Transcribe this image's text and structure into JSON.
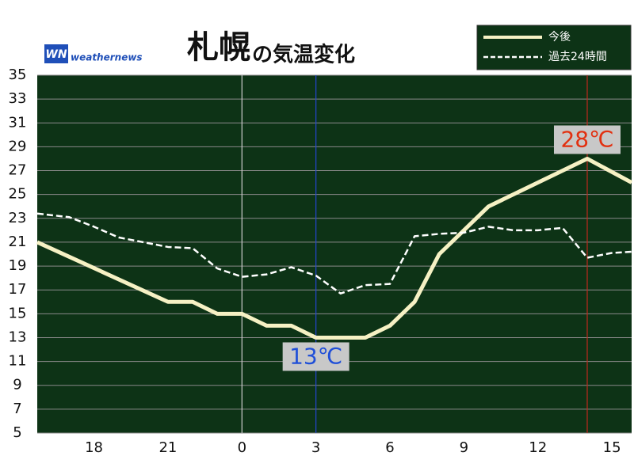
{
  "chart_data": {
    "type": "line",
    "title": "札幌",
    "subtitle": "の気温変化",
    "logo": {
      "mark": "WN",
      "text": "weathernews"
    },
    "xlim": [
      15.7,
      39.8
    ],
    "xticks": [
      {
        "value": 18,
        "label": "18"
      },
      {
        "value": 21,
        "label": "21"
      },
      {
        "value": 24,
        "label": "0"
      },
      {
        "value": 27,
        "label": "3"
      },
      {
        "value": 30,
        "label": "6"
      },
      {
        "value": 33,
        "label": "9"
      },
      {
        "value": 36,
        "label": "12"
      },
      {
        "value": 39,
        "label": "15"
      }
    ],
    "ylim": [
      5,
      35
    ],
    "yticks": [
      5,
      7,
      9,
      11,
      13,
      15,
      17,
      19,
      21,
      23,
      25,
      27,
      29,
      31,
      33,
      35
    ],
    "grid": true,
    "background": "#0d3316",
    "series": [
      {
        "name": "今後",
        "color": "#f6f1c4",
        "dash": false,
        "x": [
          15.7,
          21,
          22,
          23,
          24,
          25,
          26,
          27,
          28,
          29,
          30,
          31,
          32,
          33,
          34,
          38,
          39.8
        ],
        "values": [
          21,
          16,
          16,
          15,
          15,
          14,
          14,
          13,
          13,
          13,
          14,
          16,
          20,
          22,
          24,
          28,
          26
        ]
      },
      {
        "name": "過去24時間",
        "color": "#ffffff",
        "dash": true,
        "x": [
          15.7,
          17,
          18,
          19,
          20,
          21,
          22,
          23,
          24,
          25,
          26,
          27,
          28,
          29,
          30,
          31,
          32,
          33,
          34,
          35,
          36,
          37,
          38,
          39,
          39.8
        ],
        "values": [
          23.4,
          23.1,
          22.3,
          21.4,
          21,
          20.6,
          20.5,
          18.8,
          18.1,
          18.3,
          18.9,
          18.2,
          16.7,
          17.4,
          17.5,
          21.5,
          21.7,
          21.8,
          22.3,
          22,
          22,
          22.2,
          19.7,
          20.1,
          20.2
        ]
      }
    ],
    "vlines": [
      {
        "x": 24,
        "color": "#cccccc"
      },
      {
        "x": 27,
        "color": "#2545d0"
      },
      {
        "x": 38,
        "color": "#c0281e"
      }
    ],
    "annotations": [
      {
        "text": "13℃",
        "x": 27,
        "y": 13,
        "color": "#1f4fd8"
      },
      {
        "text": "28℃",
        "x": 38,
        "y": 28,
        "color": "#e23010"
      }
    ]
  }
}
